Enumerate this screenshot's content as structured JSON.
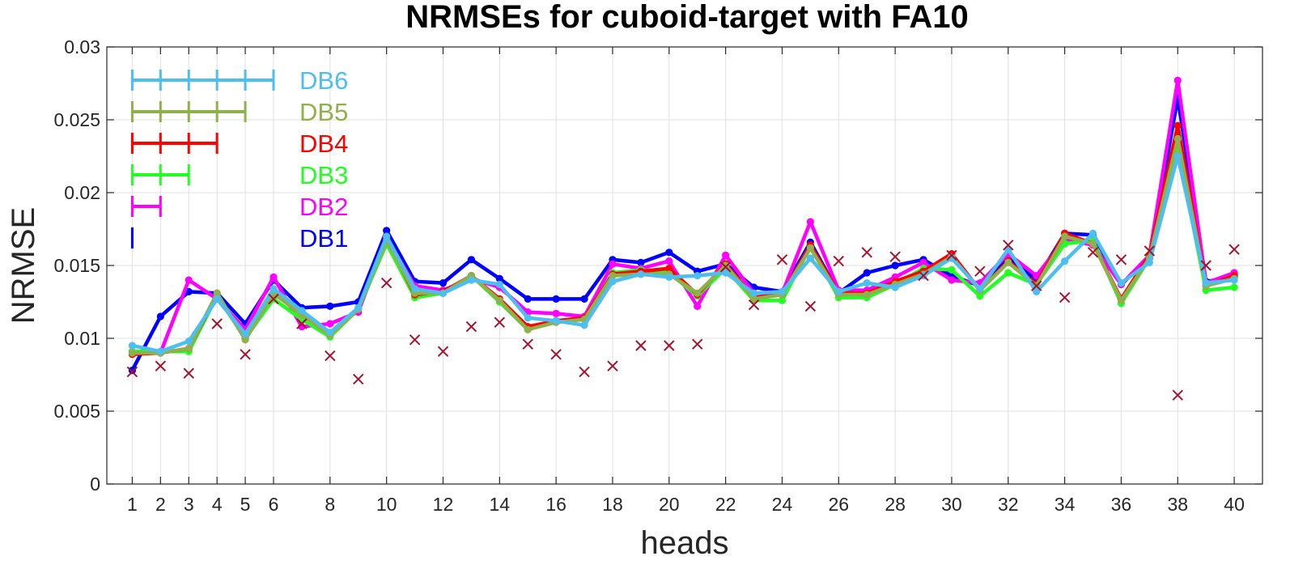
{
  "chart_data": {
    "type": "line",
    "title": "NRMSEs for cuboid-target with FA10",
    "xlabel": "heads",
    "ylabel": "NRMSE",
    "xlim": [
      0.1,
      41
    ],
    "ylim": [
      0,
      0.03
    ],
    "x_ticks": [
      1,
      2,
      3,
      4,
      5,
      6,
      8,
      10,
      12,
      14,
      16,
      18,
      20,
      22,
      24,
      26,
      28,
      30,
      32,
      34,
      36,
      38,
      40
    ],
    "y_ticks": [
      0,
      0.005,
      0.01,
      0.015,
      0.02,
      0.025,
      0.03
    ],
    "y_tick_labels": [
      "0",
      "0.005",
      "0.01",
      "0.015",
      "0.02",
      "0.025",
      "0.03"
    ],
    "grid": true,
    "legend_position": "top-left",
    "x": [
      1,
      2,
      3,
      4,
      5,
      6,
      7,
      8,
      9,
      10,
      11,
      12,
      13,
      14,
      15,
      16,
      17,
      18,
      19,
      20,
      21,
      22,
      23,
      24,
      25,
      26,
      27,
      28,
      29,
      30,
      31,
      32,
      33,
      34,
      35,
      36,
      37,
      38,
      39,
      40
    ],
    "series": [
      {
        "name": "DB1",
        "color": "#0000ff",
        "span": 1,
        "values": [
          0.0078,
          0.0115,
          0.0132,
          0.0131,
          0.011,
          0.014,
          0.0121,
          0.0122,
          0.0125,
          0.0174,
          0.0139,
          0.0138,
          0.0154,
          0.0141,
          0.0127,
          0.0127,
          0.0127,
          0.0154,
          0.0152,
          0.0159,
          0.0146,
          0.0151,
          0.0135,
          0.0132,
          0.0166,
          0.0131,
          0.0145,
          0.015,
          0.0154,
          0.0143,
          0.0136,
          0.0156,
          0.014,
          0.0172,
          0.0171,
          0.0137,
          0.0155,
          0.0265,
          0.0139,
          0.0142
        ]
      },
      {
        "name": "DB2",
        "color": "#ff00ff",
        "span": 2,
        "values": [
          0.0091,
          0.009,
          0.014,
          0.0127,
          0.0106,
          0.0142,
          0.0108,
          0.011,
          0.0118,
          0.0169,
          0.0136,
          0.0133,
          0.0141,
          0.0135,
          0.0118,
          0.0117,
          0.0115,
          0.0151,
          0.0148,
          0.0153,
          0.0122,
          0.0157,
          0.0131,
          0.0131,
          0.018,
          0.0133,
          0.0133,
          0.0142,
          0.0152,
          0.014,
          0.0138,
          0.0158,
          0.0143,
          0.0168,
          0.0164,
          0.0137,
          0.0157,
          0.0277,
          0.0138,
          0.0145
        ]
      },
      {
        "name": "DB3",
        "color": "#22ff22",
        "span": 3,
        "values": [
          0.0091,
          0.0091,
          0.0091,
          0.0129,
          0.01,
          0.0127,
          0.0113,
          0.0101,
          0.012,
          0.0165,
          0.0128,
          0.0131,
          0.0143,
          0.0125,
          0.0106,
          0.0112,
          0.0113,
          0.0145,
          0.0147,
          0.0145,
          0.0129,
          0.0148,
          0.0126,
          0.0126,
          0.0163,
          0.0128,
          0.0128,
          0.0137,
          0.0148,
          0.0147,
          0.0129,
          0.0145,
          0.0137,
          0.0165,
          0.0167,
          0.0124,
          0.0155,
          0.023,
          0.0133,
          0.0135
        ]
      },
      {
        "name": "DB4",
        "color": "#ff0000",
        "span": 4,
        "values": [
          0.0089,
          0.009,
          0.0093,
          0.013,
          0.01,
          0.0131,
          0.0117,
          0.0103,
          0.012,
          0.0168,
          0.013,
          0.0132,
          0.0143,
          0.0127,
          0.0108,
          0.0112,
          0.0114,
          0.0144,
          0.0146,
          0.0148,
          0.013,
          0.0151,
          0.0128,
          0.013,
          0.0164,
          0.0131,
          0.0131,
          0.0139,
          0.0146,
          0.0158,
          0.0133,
          0.0153,
          0.0137,
          0.0172,
          0.0165,
          0.0127,
          0.0157,
          0.0246,
          0.0136,
          0.0143
        ]
      },
      {
        "name": "DB5",
        "color": "#8fb04a",
        "span": 5,
        "values": [
          0.009,
          0.009,
          0.0093,
          0.0131,
          0.0099,
          0.0131,
          0.0116,
          0.0102,
          0.012,
          0.0167,
          0.0131,
          0.0131,
          0.0143,
          0.0126,
          0.0106,
          0.0111,
          0.0113,
          0.0143,
          0.0144,
          0.0144,
          0.0131,
          0.015,
          0.0127,
          0.013,
          0.0162,
          0.013,
          0.013,
          0.0137,
          0.0144,
          0.0156,
          0.0133,
          0.0152,
          0.0136,
          0.017,
          0.0165,
          0.0126,
          0.0155,
          0.0237,
          0.0136,
          0.0141
        ]
      },
      {
        "name": "DB6",
        "color": "#4dbeee",
        "span": 6,
        "values": [
          0.0095,
          0.0091,
          0.0098,
          0.0127,
          0.0103,
          0.0134,
          0.0119,
          0.0104,
          0.0121,
          0.017,
          0.0134,
          0.0131,
          0.014,
          0.0137,
          0.0114,
          0.0112,
          0.0109,
          0.0139,
          0.0144,
          0.0142,
          0.0143,
          0.0145,
          0.0131,
          0.0132,
          0.0155,
          0.0132,
          0.0138,
          0.0135,
          0.0143,
          0.0155,
          0.0134,
          0.0161,
          0.0132,
          0.0153,
          0.0172,
          0.0138,
          0.0152,
          0.0225,
          0.0138,
          0.014
        ]
      }
    ],
    "markers": {
      "type": "x",
      "color": "#a2142f",
      "values": [
        0.0077,
        0.0081,
        0.0076,
        0.011,
        0.0089,
        0.0127,
        0.011,
        0.0088,
        0.0072,
        0.0138,
        0.0099,
        0.0091,
        0.0108,
        0.0111,
        0.0096,
        0.0089,
        0.0077,
        0.0081,
        0.0095,
        0.0095,
        0.0096,
        0.0149,
        0.0123,
        0.0154,
        0.0122,
        0.0153,
        0.0159,
        0.0156,
        0.0143,
        0.0157,
        0.0146,
        0.0164,
        0.0136,
        0.0128,
        0.0159,
        0.0154,
        0.016,
        0.0061,
        0.015,
        0.0161
      ]
    }
  }
}
